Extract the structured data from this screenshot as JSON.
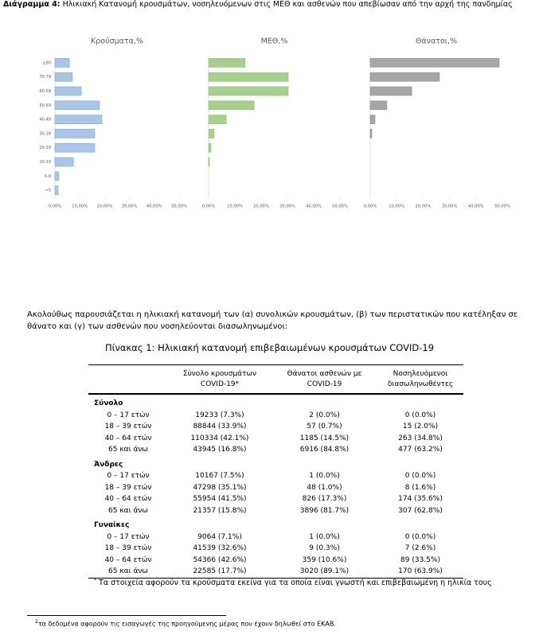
{
  "header": {
    "label": "Διάγραμμα 4:",
    "text": "Ηλικιακή Κατανομή κρουσμάτων, νοσηλευόμενων στις ΜΕΘ και ασθενών που απεβίωσαν από την αρχή της πανδημίας"
  },
  "chart_data": [
    {
      "type": "bar",
      "orientation": "horizontal",
      "title": "Κρούσματα,%",
      "categories": [
        "≥80",
        "70-79",
        "60-69",
        "50-59",
        "40-49",
        "30-39",
        "20-29",
        "10-19",
        "5-9",
        "<5"
      ],
      "values": [
        5.8,
        7.0,
        10.6,
        17.9,
        18.9,
        16.0,
        16.0,
        7.4,
        1.6,
        1.3
      ],
      "color": "#a9c5e8",
      "edge": "#7ea6d6",
      "xlim": [
        0,
        50
      ],
      "xticks": [
        {
          "value": 0,
          "label": "0,00%"
        },
        {
          "value": 10,
          "label": "10,00%"
        },
        {
          "value": 20,
          "label": "20,00%"
        },
        {
          "value": 30,
          "label": "30,00%"
        },
        {
          "value": 40,
          "label": "40,00%"
        },
        {
          "value": 50,
          "label": "50,00%"
        }
      ]
    },
    {
      "type": "bar",
      "orientation": "horizontal",
      "title": "ΜΕΘ,%",
      "categories": [
        null,
        null,
        null,
        null,
        null,
        null,
        null,
        null,
        null,
        null
      ],
      "values": [
        13.9,
        30.3,
        30.3,
        17.3,
        6.7,
        2.1,
        0.9,
        0.3,
        0,
        0
      ],
      "color": "#a8d08d",
      "edge": "#8cbf6c",
      "xlim": [
        0,
        50
      ],
      "xticks": [
        {
          "value": 0,
          "label": "0,00%"
        },
        {
          "value": 10,
          "label": "10,00%"
        },
        {
          "value": 20,
          "label": "20,00%"
        },
        {
          "value": 30,
          "label": "30,00%"
        },
        {
          "value": 40,
          "label": "40,00%"
        },
        {
          "value": 50,
          "label": "50,00%"
        }
      ]
    },
    {
      "type": "bar",
      "orientation": "horizontal",
      "title": "Θάνατοι,%",
      "categories": [
        null,
        null,
        null,
        null,
        null,
        null,
        null,
        null,
        null,
        null
      ],
      "values": [
        48.8,
        26.2,
        15.7,
        6.3,
        1.8,
        0.6,
        0,
        0,
        0,
        0
      ],
      "color": "#a6a6a6",
      "edge": "#8f8f8f",
      "xlim": [
        0,
        50
      ],
      "xticks": [
        {
          "value": 0,
          "label": "0,00%"
        },
        {
          "value": 10,
          "label": "10,00%"
        },
        {
          "value": 20,
          "label": "20,00%"
        },
        {
          "value": 30,
          "label": "30,00%"
        },
        {
          "value": 40,
          "label": "40,00%"
        },
        {
          "value": 50,
          "label": "50,00%"
        }
      ]
    }
  ],
  "paragraph": "Ακολούθως παρουσιάζεται η ηλικιακή κατανομή των (α) συνολικών κρουσμάτων, (β) των περιστατικών που κατέληξαν σε θάνατο και (γ) των ασθενών που νοσηλεύονται διασωληνωμένοι:",
  "table": {
    "caption": "Πίνακας 1: Ηλικιακή κατανομή επιβεβαιωμένων κρουσμάτων COVID-19",
    "header": [
      "Σύνολο κρουσμάτων COVID-19*",
      "Θάνατοι ασθενών με COVID-19",
      "Νοσηλευόμενοι διασωληνωθέντες"
    ],
    "groups": [
      {
        "label": "Σύνολο",
        "rows": [
          [
            "0 – 17 ετών",
            "19233 (7.3%)",
            "2 (0.0%)",
            "0 (0.0%)"
          ],
          [
            "18 – 39 ετών",
            "88844 (33.9%)",
            "57 (0.7%)",
            "15 (2.0%)"
          ],
          [
            "40 – 64 ετών",
            "110334 (42.1%)",
            "1185 (14.5%)",
            "263 (34.8%)"
          ],
          [
            "65 και άνω",
            "43945 (16.8%)",
            "6916 (84.8%)",
            "477 (63.2%)"
          ]
        ]
      },
      {
        "label": "Άνδρες",
        "rows": [
          [
            "0 – 17 ετών",
            "10167 (7.5%)",
            "1 (0.0%)",
            "0 (0.0%)"
          ],
          [
            "18 – 39 ετών",
            "47298 (35.1%)",
            "48 (1.0%)",
            "8 (1.6%)"
          ],
          [
            "40 – 64 ετών",
            "55954 (41.5%)",
            "826 (17.3%)",
            "174 (35.6%)"
          ],
          [
            "65 και άνω",
            "21357 (15.8%)",
            "3896 (81.7%)",
            "307 (62.8%)"
          ]
        ]
      },
      {
        "label": "Γυναίκες",
        "rows": [
          [
            "0 – 17 ετών",
            "9064 (7.1%)",
            "1 (0.0%)",
            "0 (0.0%)"
          ],
          [
            "18 – 39 ετών",
            "41539 (32.6%)",
            "9 (0.3%)",
            "7 (2.6%)"
          ],
          [
            "40 – 64 ετών",
            "54366 (42.6%)",
            "359 (10.6%)",
            "89 (33.5%)"
          ],
          [
            "65 και άνω",
            "22585 (17.7%)",
            "3020 (89.1%)",
            "170 (63.9%)"
          ]
        ]
      }
    ],
    "note_mark": "*",
    "note": "Τα στοιχεία αφορούν τα κρούσματα εκείνα για τα οποία είναι γνωστή και επιβεβαιωμένη η ηλικία τους"
  },
  "footnote": {
    "mark": "2",
    "text": "τα δεδομένα αφορούν τις εισαγωγές της προηγούμενης μέρας που έχουν δηλωθεί στο ΕΚΑΒ."
  }
}
